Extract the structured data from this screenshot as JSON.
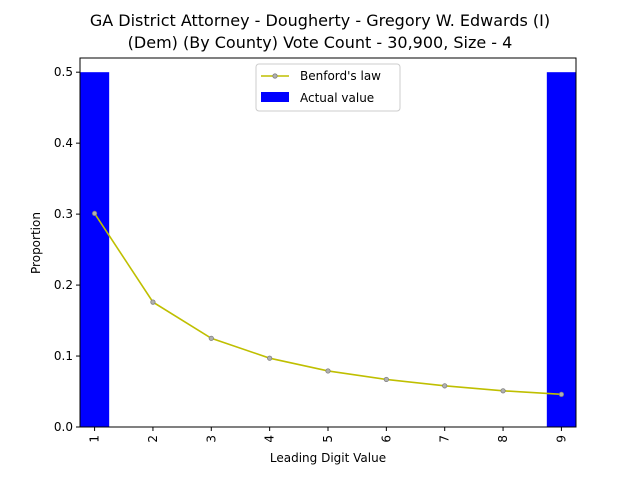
{
  "chart_data": {
    "type": "bar",
    "title_lines": [
      "GA District Attorney - Dougherty - Gregory W. Edwards (I)",
      "(Dem) (By County) Vote Count - 30,900, Size - 4"
    ],
    "xlabel": "Leading Digit Value",
    "ylabel": "Proportion",
    "categories": [
      "1",
      "2",
      "3",
      "4",
      "5",
      "6",
      "7",
      "8",
      "9"
    ],
    "x": [
      1,
      2,
      3,
      4,
      5,
      6,
      7,
      8,
      9
    ],
    "ylim": [
      0,
      0.52
    ],
    "xlim": [
      0.75,
      9.25
    ],
    "yticks": [
      0.0,
      0.1,
      0.2,
      0.3,
      0.4,
      0.5
    ],
    "yticklabels": [
      "0.0",
      "0.1",
      "0.2",
      "0.3",
      "0.4",
      "0.5"
    ],
    "grid": false,
    "legend_position": "top-center",
    "series": [
      {
        "name": "Benford's law",
        "type": "line",
        "color": "#bfbf00",
        "marker_fill": "#b0b0b0",
        "values": [
          0.301,
          0.176,
          0.125,
          0.097,
          0.079,
          0.067,
          0.058,
          0.051,
          0.046
        ]
      },
      {
        "name": "Actual value",
        "type": "bar",
        "color": "#0000ff",
        "values": [
          0.5,
          0,
          0,
          0,
          0,
          0,
          0,
          0,
          0.5
        ]
      }
    ]
  }
}
